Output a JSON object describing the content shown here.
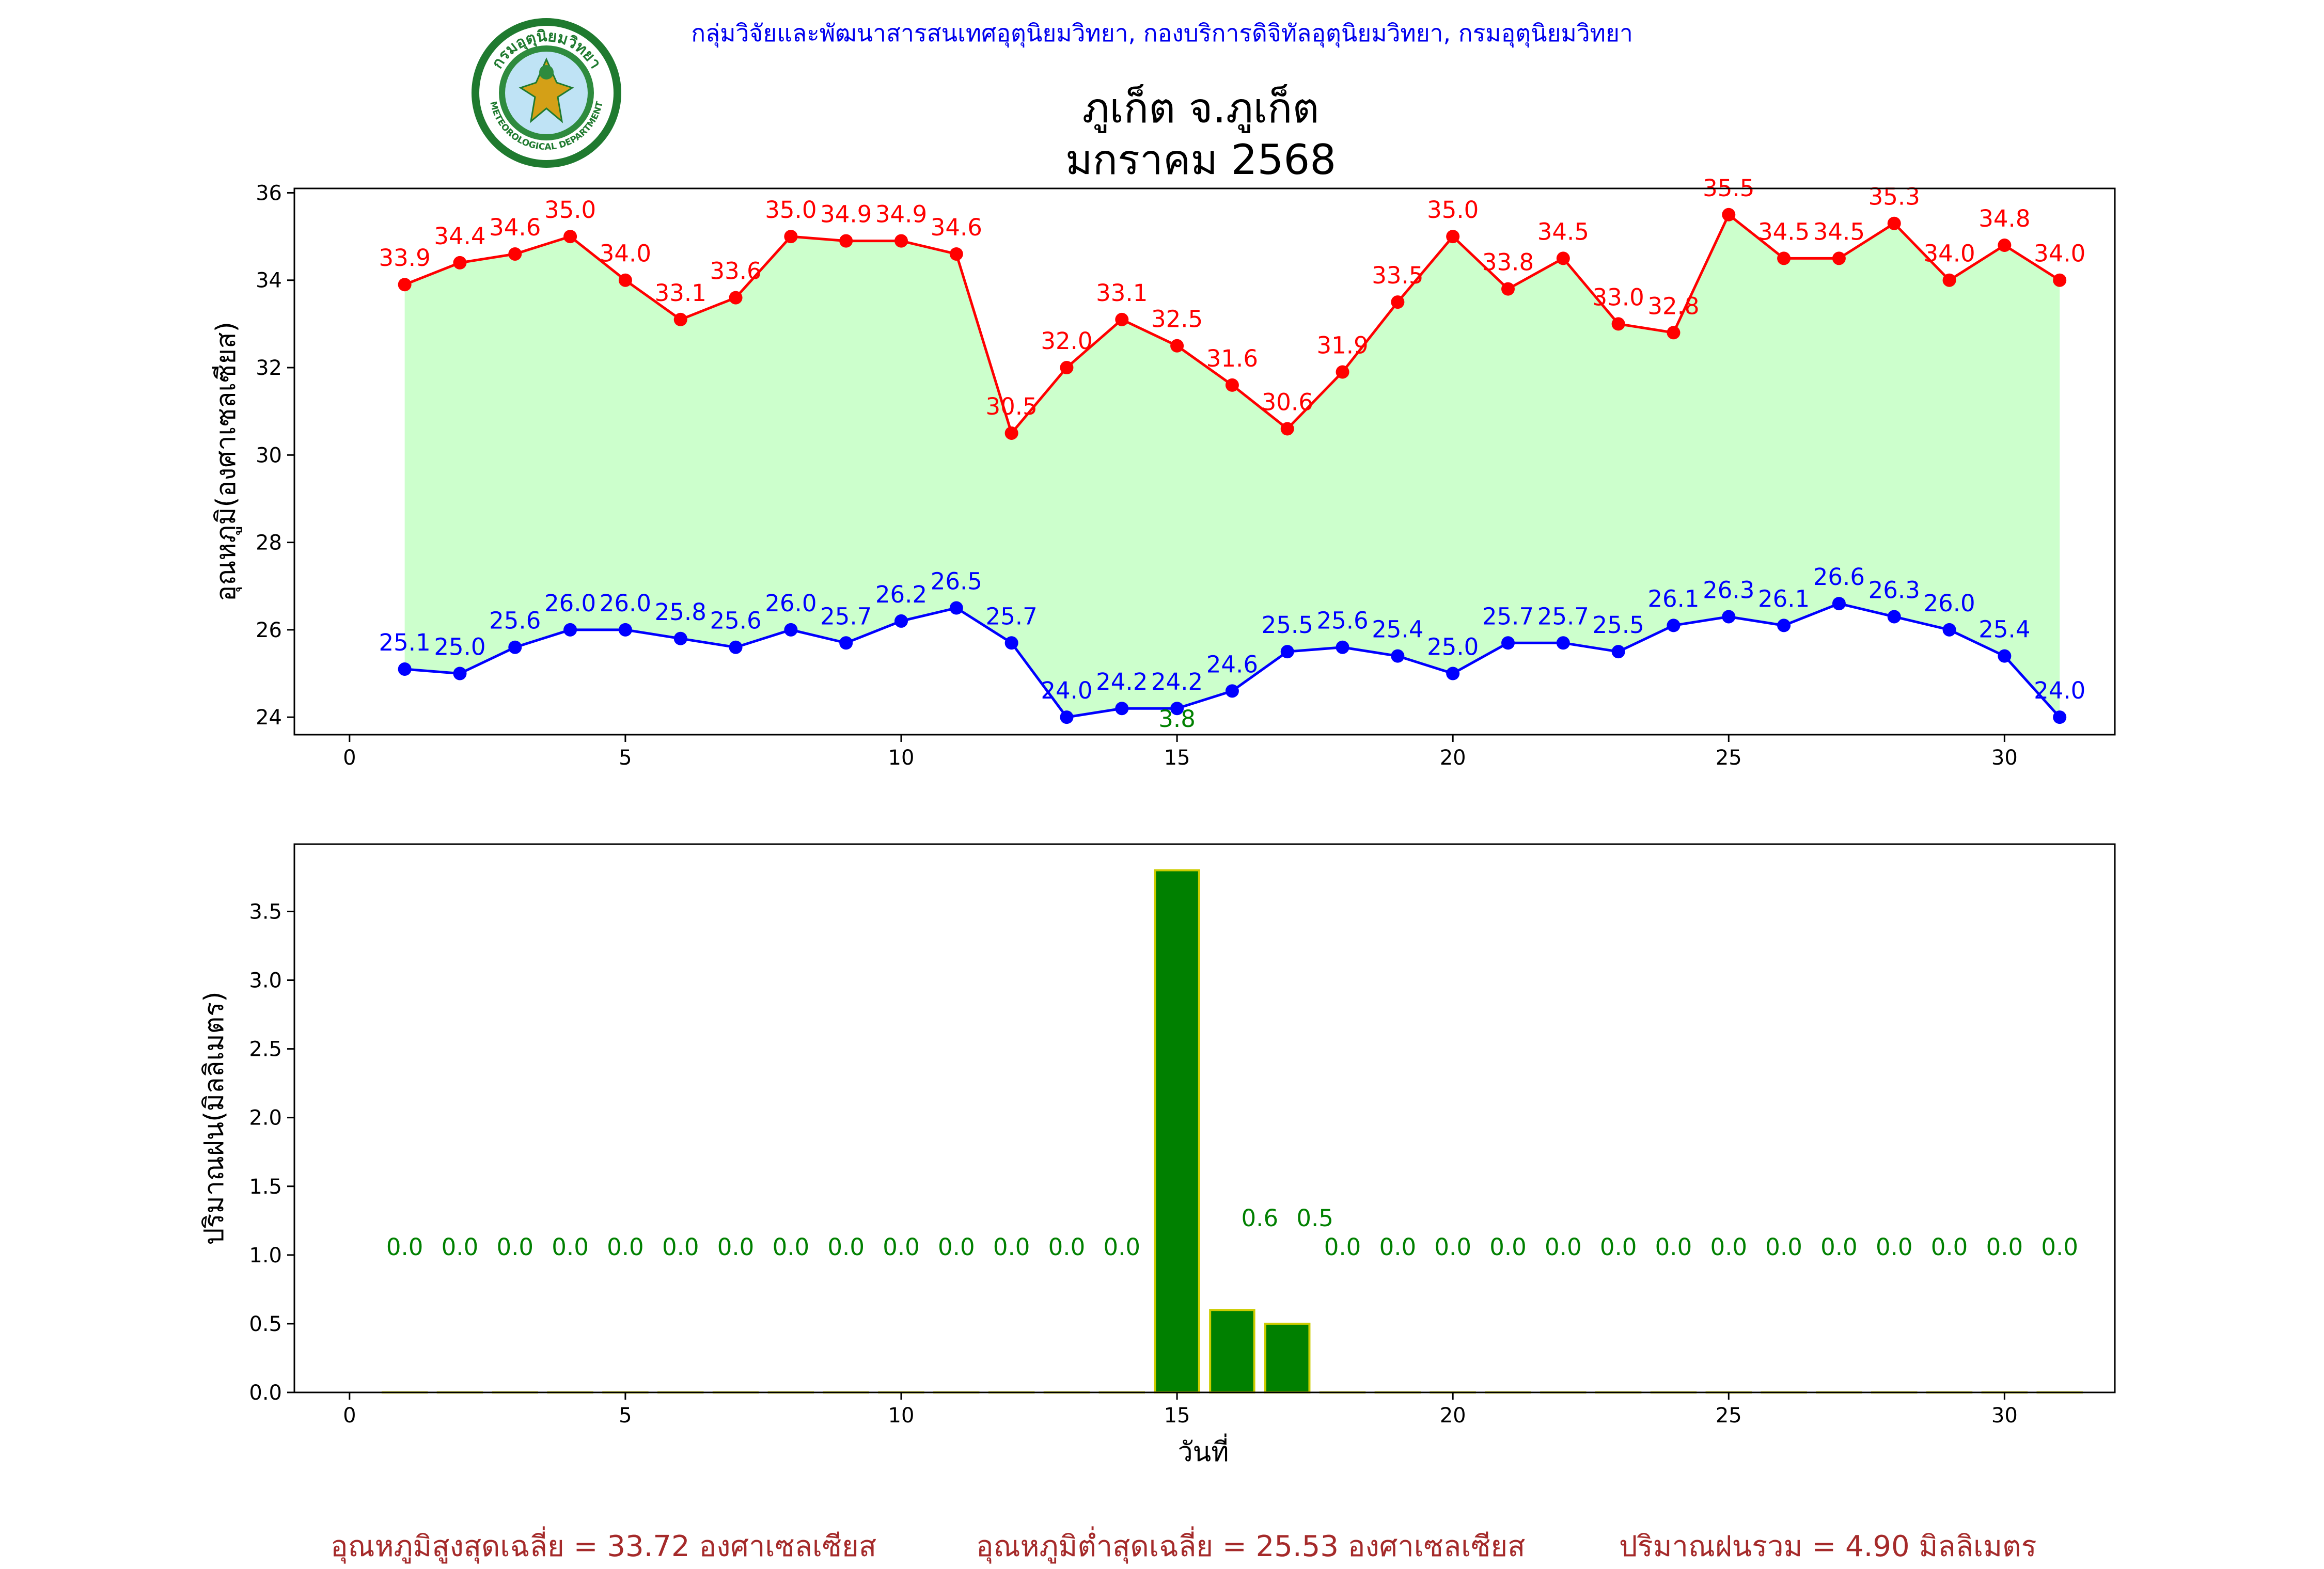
{
  "header": {
    "credit": "กลุ่มวิจัยและพัฒนาสารสนเทศอุตุนิยมวิทยา, กองบริการดิจิทัลอุตุนิยมวิทยา, กรมอุตุนิยมวิทยา",
    "logo_text_top": "กรมอุตุนิยมวิทยา",
    "logo_text_bottom": "METEOROLOGICAL DEPARTMENT",
    "title_line1": "ภูเก็ต จ.ภูเก็ต",
    "title_line2": "มกราคม 2568"
  },
  "colors": {
    "max": "#ff0000",
    "min": "#0000ff",
    "fill": "#ccffcc",
    "rain_bar": "#008000",
    "rain_edge": "#cccc00",
    "rain_label": "#008000",
    "credit": "#0000ee",
    "summary": "#a52a2a"
  },
  "chart_data": [
    {
      "type": "line",
      "ylabel": "อุณหภูมิ(องศาเซลเซียส)",
      "xlim": [
        -1,
        32
      ],
      "ylim": [
        23.6,
        36.1
      ],
      "xticks": [
        0,
        5,
        10,
        15,
        20,
        25,
        30
      ],
      "yticks": [
        24,
        26,
        28,
        30,
        32,
        34,
        36
      ],
      "x": [
        1,
        2,
        3,
        4,
        5,
        6,
        7,
        8,
        9,
        10,
        11,
        12,
        13,
        14,
        15,
        16,
        17,
        18,
        19,
        20,
        21,
        22,
        23,
        24,
        25,
        26,
        27,
        28,
        29,
        30,
        31
      ],
      "series": [
        {
          "key": "max",
          "values": [
            33.9,
            34.4,
            34.6,
            35.0,
            34.0,
            33.1,
            33.6,
            35.0,
            34.9,
            34.9,
            34.6,
            30.5,
            32.0,
            33.1,
            32.5,
            31.6,
            30.6,
            31.9,
            33.5,
            35.0,
            33.8,
            34.5,
            33.0,
            32.8,
            35.5,
            34.5,
            34.5,
            35.3,
            34.0,
            34.8,
            34.0
          ]
        },
        {
          "key": "min",
          "values": [
            25.1,
            25.0,
            25.6,
            26.0,
            26.0,
            25.8,
            25.6,
            26.0,
            25.7,
            26.2,
            26.5,
            25.7,
            24.0,
            24.2,
            24.2,
            24.6,
            25.5,
            25.6,
            25.4,
            25.0,
            25.7,
            25.7,
            25.5,
            26.1,
            26.3,
            26.1,
            26.6,
            26.3,
            26.0,
            25.4,
            24.0
          ]
        }
      ],
      "annotations": [
        {
          "x": 15,
          "text": "3.8"
        }
      ]
    },
    {
      "type": "bar",
      "xlabel": "วันที่",
      "ylabel": "ปริมาณฝน(มิลลิเมตร)",
      "xlim": [
        -1,
        32
      ],
      "ylim": [
        0,
        3.99
      ],
      "xticks": [
        0,
        5,
        10,
        15,
        20,
        25,
        30
      ],
      "yticks": [
        0.0,
        0.5,
        1.0,
        1.5,
        2.0,
        2.5,
        3.0,
        3.5
      ],
      "x": [
        1,
        2,
        3,
        4,
        5,
        6,
        7,
        8,
        9,
        10,
        11,
        12,
        13,
        14,
        15,
        16,
        17,
        18,
        19,
        20,
        21,
        22,
        23,
        24,
        25,
        26,
        27,
        28,
        29,
        30,
        31
      ],
      "values": [
        0.0,
        0.0,
        0.0,
        0.0,
        0.0,
        0.0,
        0.0,
        0.0,
        0.0,
        0.0,
        0.0,
        0.0,
        0.0,
        0.0,
        3.8,
        0.6,
        0.5,
        0.0,
        0.0,
        0.0,
        0.0,
        0.0,
        0.0,
        0.0,
        0.0,
        0.0,
        0.0,
        0.0,
        0.0,
        0.0,
        0.0
      ],
      "value_labels": [
        "0.0",
        "0.0",
        "0.0",
        "0.0",
        "0.0",
        "0.0",
        "0.0",
        "0.0",
        "0.0",
        "0.0",
        "0.0",
        "0.0",
        "0.0",
        "0.0",
        "",
        "0.6",
        "0.5",
        "0.0",
        "0.0",
        "0.0",
        "0.0",
        "0.0",
        "0.0",
        "0.0",
        "0.0",
        "0.0",
        "0.0",
        "0.0",
        "0.0",
        "0.0",
        "0.0"
      ]
    }
  ],
  "summary": {
    "avg_max": "อุณหภูมิสูงสุดเฉลี่ย = 33.72 องศาเซลเซียส",
    "avg_min": "อุณหภูมิต่ำสุดเฉลี่ย = 25.53 องศาเซลเซียส",
    "total_rain": "ปริมาณฝนรวม = 4.90 มิลลิเมตร"
  }
}
